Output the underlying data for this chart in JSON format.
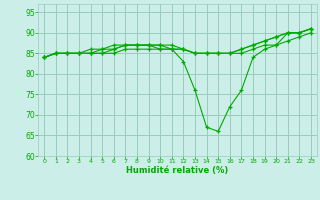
{
  "xlabel": "Humidité relative (%)",
  "background_color": "#cceee8",
  "grid_color": "#99ccbb",
  "line_color": "#00aa00",
  "marker": "+",
  "xlim": [
    -0.5,
    23.5
  ],
  "ylim": [
    60,
    97
  ],
  "yticks": [
    60,
    65,
    70,
    75,
    80,
    85,
    90,
    95
  ],
  "xticks": [
    0,
    1,
    2,
    3,
    4,
    5,
    6,
    7,
    8,
    9,
    10,
    11,
    12,
    13,
    14,
    15,
    16,
    17,
    18,
    19,
    20,
    21,
    22,
    23
  ],
  "series": [
    [
      84,
      85,
      85,
      85,
      85,
      85,
      86,
      87,
      87,
      87,
      87,
      86,
      83,
      76,
      67,
      66,
      72,
      76,
      84,
      86,
      87,
      90,
      90,
      91
    ],
    [
      84,
      85,
      85,
      85,
      86,
      86,
      87,
      87,
      87,
      87,
      87,
      87,
      86,
      85,
      85,
      85,
      85,
      86,
      87,
      88,
      89,
      90,
      90,
      91
    ],
    [
      84,
      85,
      85,
      85,
      85,
      86,
      86,
      87,
      87,
      87,
      86,
      86,
      86,
      85,
      85,
      85,
      85,
      86,
      87,
      88,
      89,
      90,
      90,
      91
    ],
    [
      84,
      85,
      85,
      85,
      85,
      85,
      85,
      86,
      86,
      86,
      86,
      86,
      86,
      85,
      85,
      85,
      85,
      85,
      86,
      87,
      87,
      88,
      89,
      90
    ]
  ]
}
